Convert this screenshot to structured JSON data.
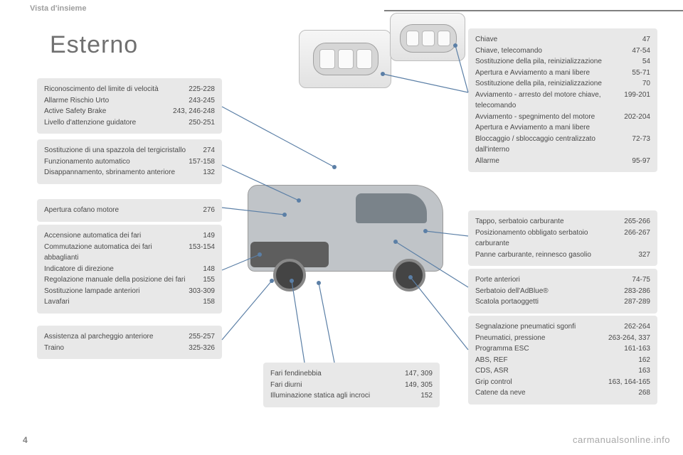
{
  "header": {
    "section": "Vista d'insieme"
  },
  "title": "Esterno",
  "page_number": "4",
  "watermark": "carmanualsonline.info",
  "boxes": {
    "b1": [
      {
        "label": "Riconoscimento del limite di velocità",
        "pages": "225-228"
      },
      {
        "label": "Allarme Rischio Urto",
        "pages": "243-245"
      },
      {
        "label": "Active Safety Brake",
        "pages": "243, 246-248"
      },
      {
        "label": "Livello d'attenzione guidatore",
        "pages": "250-251"
      }
    ],
    "b2": [
      {
        "label": "Sostituzione di una spazzola del tergicristallo",
        "pages": "274"
      },
      {
        "label": "Funzionamento automatico",
        "pages": "157-158"
      },
      {
        "label": "Disappannamento, sbrinamento anteriore",
        "pages": "132"
      }
    ],
    "b3": [
      {
        "label": "Apertura cofano motore",
        "pages": "276"
      }
    ],
    "b4": [
      {
        "label": "Accensione automatica dei fari",
        "pages": "149"
      },
      {
        "label": "Commutazione automatica dei fari abbaglianti",
        "pages": "153-154"
      },
      {
        "label": "Indicatore di direzione",
        "pages": "148"
      },
      {
        "label": "Regolazione manuale della posizione dei fari",
        "pages": "155"
      },
      {
        "label": "Sostituzione lampade anteriori",
        "pages": "303-309"
      },
      {
        "label": "Lavafari",
        "pages": "158"
      }
    ],
    "b5": [
      {
        "label": "Assistenza al parcheggio anteriore",
        "pages": "255-257"
      },
      {
        "label": "Traino",
        "pages": "325-326"
      }
    ],
    "b6": [
      {
        "label": "Fari fendinebbia",
        "pages": "147, 309"
      },
      {
        "label": "Fari diurni",
        "pages": "149, 305"
      },
      {
        "label": "Illuminazione statica agli incroci",
        "pages": "152"
      }
    ],
    "b7": [
      {
        "label": "Chiave",
        "pages": "47"
      },
      {
        "label": "Chiave, telecomando",
        "pages": "47-54"
      },
      {
        "label": "Sostituzione della pila, reinizializzazione",
        "pages": "54"
      },
      {
        "label": "Apertura e Avviamento a mani libere",
        "pages": "55-71"
      },
      {
        "label": "Sostituzione della pila, reinizializzazione",
        "pages": "70"
      },
      {
        "label": "Avviamento - arresto del motore chiave, telecomando",
        "pages": "199-201"
      },
      {
        "label": "Avviamento - spegnimento del motore Apertura e Avviamento a mani libere",
        "pages": "202-204"
      },
      {
        "label": "Bloccaggio / sbloccaggio centralizzato dall'interno",
        "pages": "72-73"
      },
      {
        "label": "Allarme",
        "pages": "95-97"
      }
    ],
    "b8": [
      {
        "label": "Tappo, serbatoio carburante",
        "pages": "265-266"
      },
      {
        "label": "Posizionamento obbligato serbatoio carburante",
        "pages": "266-267"
      },
      {
        "label": "Panne carburante, reinnesco gasolio",
        "pages": "327"
      }
    ],
    "b9": [
      {
        "label": "Porte anteriori",
        "pages": "74-75"
      },
      {
        "label": "Serbatoio dell'AdBlue®",
        "pages": "283-286"
      },
      {
        "label": "Scatola portaoggetti",
        "pages": "287-289"
      }
    ],
    "b10": [
      {
        "label": "Segnalazione pneumatici sgonfi",
        "pages": "262-264"
      },
      {
        "label": "Pneumatici, pressione",
        "pages": "263-264, 337"
      },
      {
        "label": "Programma ESC",
        "pages": "161-163"
      },
      {
        "label": "ABS, REF",
        "pages": "162"
      },
      {
        "label": "CDS, ASR",
        "pages": "163"
      },
      {
        "label": "Grip control",
        "pages": "163, 164-165"
      },
      {
        "label": "Catene da neve",
        "pages": "268"
      }
    ]
  },
  "style": {
    "box_bg": "#e8e8e8",
    "text_color": "#4a4a4a",
    "leader_color": "#5b7fa6",
    "title_color": "#707070",
    "font_size_box": 10,
    "font_size_title": 34
  }
}
